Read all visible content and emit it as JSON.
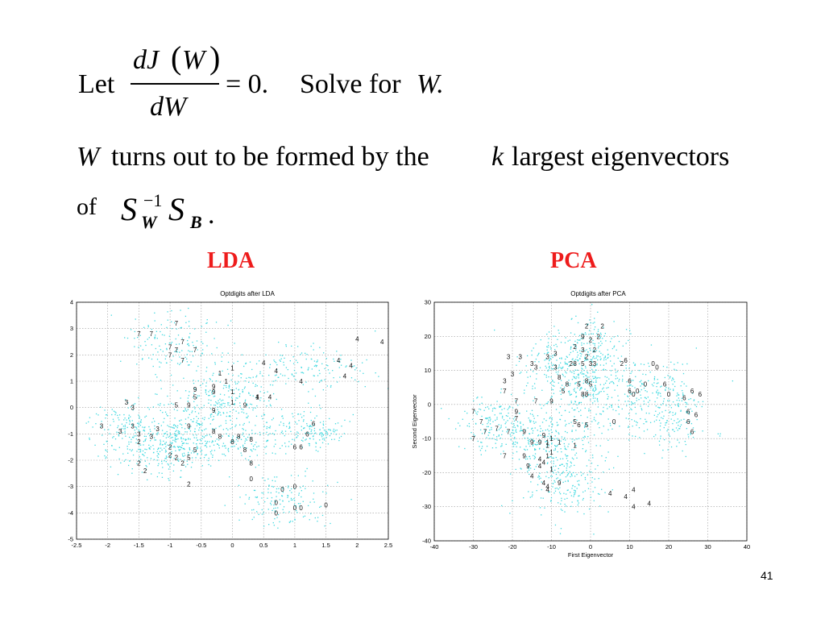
{
  "slide": {
    "let_word": "Let",
    "numerator": "dJ",
    "paren_open": "(",
    "numerator_var": "W",
    "paren_close": ")",
    "denominator": "dW",
    "equals": "= 0.",
    "solve_text": "Solve for",
    "solve_var": "W.",
    "line2_var": "W",
    "line2_mid": "turns out to be formed by the",
    "line2_k": "k",
    "line2_end": "largest eigenvectors",
    "line3_of": "of",
    "s1": "S",
    "s1_sub": "W",
    "s1_sup": "−1",
    "s2": "S",
    "s2_sub": "B",
    "period": ".",
    "label_lda": "LDA",
    "label_pca": "PCA",
    "page_number": "41"
  },
  "colors": {
    "accent_red": "#ee1c1c",
    "scatter_cyan": "#3fd9e0"
  },
  "chart_data": [
    {
      "type": "scatter",
      "title": "Optdigits after LDA",
      "xlabel": "",
      "ylabel": "",
      "xlim": [
        -2.5,
        2.5
      ],
      "ylim": [
        -5,
        4
      ],
      "xticks": [
        "-2.5",
        "-2",
        "-1.5",
        "-1",
        "-0.5",
        "0",
        "0.5",
        "1",
        "1.5",
        "2",
        "2.5"
      ],
      "yticks": [
        "-5",
        "-4",
        "-3",
        "-2",
        "-1",
        "0",
        "1",
        "2",
        "3",
        "4"
      ],
      "grid": true,
      "clusters": [
        {
          "label": "7",
          "cx": -0.9,
          "cy": 2.4,
          "sx": 0.45,
          "sy": 0.55
        },
        {
          "label": "4",
          "cx": 1.2,
          "cy": 1.5,
          "sx": 0.6,
          "sy": 0.5
        },
        {
          "label": "1",
          "cx": -0.1,
          "cy": 0.6,
          "sx": 0.4,
          "sy": 0.5
        },
        {
          "label": "3",
          "cx": -1.7,
          "cy": -0.8,
          "sx": 0.3,
          "sy": 0.5
        },
        {
          "label": "2",
          "cx": -1.1,
          "cy": -1.7,
          "sx": 0.45,
          "sy": 0.4
        },
        {
          "label": "8",
          "cx": 0.1,
          "cy": -1.2,
          "sx": 0.45,
          "sy": 0.45
        },
        {
          "label": "6",
          "cx": 1.2,
          "cy": -0.9,
          "sx": 0.3,
          "sy": 0.4
        },
        {
          "label": "0",
          "cx": 0.8,
          "cy": -3.5,
          "sx": 0.35,
          "sy": 0.5
        },
        {
          "label": "9",
          "cx": -0.4,
          "cy": -0.2,
          "sx": 0.5,
          "sy": 0.5
        },
        {
          "label": "5",
          "cx": -0.8,
          "cy": -1.3,
          "sx": 0.4,
          "sy": 0.5
        }
      ],
      "labels": [
        {
          "t": "7",
          "x": -0.9,
          "y": 3.2
        },
        {
          "t": "7",
          "x": -1.5,
          "y": 2.8
        },
        {
          "t": "7",
          "x": -1.3,
          "y": 2.8
        },
        {
          "t": "7",
          "x": -0.8,
          "y": 2.5
        },
        {
          "t": "7",
          "x": -1.0,
          "y": 2.3
        },
        {
          "t": "7",
          "x": -0.9,
          "y": 2.2
        },
        {
          "t": "7",
          "x": -0.6,
          "y": 2.2
        },
        {
          "t": "7",
          "x": -1.0,
          "y": 2.0
        },
        {
          "t": "7",
          "x": -0.8,
          "y": 1.8
        },
        {
          "t": "4",
          "x": 2.0,
          "y": 2.6
        },
        {
          "t": "4",
          "x": 2.4,
          "y": 2.5
        },
        {
          "t": "4",
          "x": 1.7,
          "y": 1.8
        },
        {
          "t": "4",
          "x": 1.9,
          "y": 1.6
        },
        {
          "t": "4",
          "x": 1.8,
          "y": 1.2
        },
        {
          "t": "4",
          "x": 0.5,
          "y": 1.7
        },
        {
          "t": "4",
          "x": 0.7,
          "y": 1.4
        },
        {
          "t": "4",
          "x": 1.1,
          "y": 1.0
        },
        {
          "t": "4",
          "x": 0.6,
          "y": 0.4
        },
        {
          "t": "4",
          "x": 0.4,
          "y": 0.4
        },
        {
          "t": "1",
          "x": 0.0,
          "y": 1.5
        },
        {
          "t": "1",
          "x": -0.2,
          "y": 1.3
        },
        {
          "t": "1",
          "x": -0.1,
          "y": 1.0
        },
        {
          "t": "1",
          "x": 0.0,
          "y": 0.6
        },
        {
          "t": "1",
          "x": 0.4,
          "y": 0.4
        },
        {
          "t": "1",
          "x": 0.0,
          "y": 0.2
        },
        {
          "t": "9",
          "x": -0.6,
          "y": 0.7
        },
        {
          "t": "9",
          "x": -0.3,
          "y": 0.8
        },
        {
          "t": "9",
          "x": -0.3,
          "y": 0.6
        },
        {
          "t": "9",
          "x": -0.7,
          "y": 0.1
        },
        {
          "t": "9",
          "x": -0.3,
          "y": -0.1
        },
        {
          "t": "9",
          "x": 0.2,
          "y": 0.1
        },
        {
          "t": "9",
          "x": -0.7,
          "y": -0.7
        },
        {
          "t": "5",
          "x": -0.6,
          "y": 0.4
        },
        {
          "t": "5",
          "x": -0.9,
          "y": 0.1
        },
        {
          "t": "5",
          "x": -0.6,
          "y": -1.6
        },
        {
          "t": "5",
          "x": -0.7,
          "y": -1.9
        },
        {
          "t": "3",
          "x": -2.1,
          "y": -0.7
        },
        {
          "t": "3",
          "x": -1.7,
          "y": 0.2
        },
        {
          "t": "3",
          "x": -1.6,
          "y": 0.0
        },
        {
          "t": "3",
          "x": -1.6,
          "y": -0.7
        },
        {
          "t": "3",
          "x": -1.5,
          "y": -1.0
        },
        {
          "t": "3",
          "x": -1.2,
          "y": -0.8
        },
        {
          "t": "3",
          "x": -1.3,
          "y": -1.1
        },
        {
          "t": "3",
          "x": -1.8,
          "y": -0.9
        },
        {
          "t": "2",
          "x": -1.5,
          "y": -1.3
        },
        {
          "t": "2",
          "x": -1.0,
          "y": -1.5
        },
        {
          "t": "2",
          "x": -1.0,
          "y": -1.8
        },
        {
          "t": "2",
          "x": -0.8,
          "y": -2.1
        },
        {
          "t": "2",
          "x": -1.5,
          "y": -2.1
        },
        {
          "t": "2",
          "x": -1.4,
          "y": -2.4
        },
        {
          "t": "2",
          "x": -0.7,
          "y": -2.9
        },
        {
          "t": "2",
          "x": -0.9,
          "y": -1.9
        },
        {
          "t": "8",
          "x": -0.3,
          "y": -0.9
        },
        {
          "t": "8",
          "x": -0.2,
          "y": -1.1
        },
        {
          "t": "8",
          "x": 0.0,
          "y": -1.3
        },
        {
          "t": "8",
          "x": 0.1,
          "y": -1.1
        },
        {
          "t": "8",
          "x": 0.3,
          "y": -1.2
        },
        {
          "t": "8",
          "x": 0.2,
          "y": -1.6
        },
        {
          "t": "8",
          "x": 0.3,
          "y": -2.1
        },
        {
          "t": "6",
          "x": 1.3,
          "y": -0.6
        },
        {
          "t": "6",
          "x": 1.2,
          "y": -1.0
        },
        {
          "t": "6",
          "x": 1.0,
          "y": -1.5
        },
        {
          "t": "6",
          "x": 1.1,
          "y": -1.5
        },
        {
          "t": "0",
          "x": 0.3,
          "y": -2.7
        },
        {
          "t": "0",
          "x": 0.8,
          "y": -3.1
        },
        {
          "t": "0",
          "x": 1.0,
          "y": -3.0
        },
        {
          "t": "0",
          "x": 0.7,
          "y": -3.6
        },
        {
          "t": "0",
          "x": 1.0,
          "y": -3.8
        },
        {
          "t": "0",
          "x": 1.1,
          "y": -3.8
        },
        {
          "t": "0",
          "x": 0.7,
          "y": -4.0
        },
        {
          "t": "0",
          "x": 1.5,
          "y": -3.7
        }
      ]
    },
    {
      "type": "scatter",
      "title": "Optdigits after PCA",
      "xlabel": "First Eigenvector",
      "ylabel": "Second Eigenvector",
      "xlim": [
        -40,
        40
      ],
      "ylim": [
        -40,
        30
      ],
      "xticks": [
        "-40",
        "-30",
        "-20",
        "-10",
        "0",
        "10",
        "20",
        "30",
        "40"
      ],
      "yticks": [
        "-40",
        "-30",
        "-20",
        "-10",
        "0",
        "10",
        "20",
        "30"
      ],
      "grid": true,
      "clusters": [
        {
          "label": "2",
          "cx": 0,
          "cy": 18,
          "sx": 4,
          "sy": 4
        },
        {
          "label": "3",
          "cx": -9,
          "cy": 12,
          "sx": 5,
          "sy": 4
        },
        {
          "label": "8",
          "cx": -1,
          "cy": 7,
          "sx": 5,
          "sy": 5
        },
        {
          "label": "0",
          "cx": 15,
          "cy": 4,
          "sx": 5,
          "sy": 5
        },
        {
          "label": "6",
          "cx": 21,
          "cy": -3,
          "sx": 4,
          "sy": 5
        },
        {
          "label": "7",
          "cx": -25,
          "cy": -6,
          "sx": 4,
          "sy": 4
        },
        {
          "label": "9",
          "cx": -14,
          "cy": -9,
          "sx": 5,
          "sy": 5
        },
        {
          "label": "1",
          "cx": -10,
          "cy": -14,
          "sx": 5,
          "sy": 5
        },
        {
          "label": "4",
          "cx": -6,
          "cy": -24,
          "sx": 5,
          "sy": 5
        },
        {
          "label": "5",
          "cx": 0,
          "cy": 0,
          "sx": 6,
          "sy": 6
        }
      ],
      "labels": [
        {
          "t": "2",
          "x": -1,
          "y": 23
        },
        {
          "t": "2",
          "x": 3,
          "y": 23
        },
        {
          "t": "9",
          "x": -2,
          "y": 20
        },
        {
          "t": "2",
          "x": 0,
          "y": 19
        },
        {
          "t": "2",
          "x": 2,
          "y": 20
        },
        {
          "t": "2",
          "x": -4,
          "y": 17
        },
        {
          "t": "3",
          "x": -2,
          "y": 16
        },
        {
          "t": "2",
          "x": 1,
          "y": 16
        },
        {
          "t": "2",
          "x": -1,
          "y": 14
        },
        {
          "t": "3",
          "x": -21,
          "y": 14
        },
        {
          "t": "3",
          "x": -18,
          "y": 14
        },
        {
          "t": "3",
          "x": -15,
          "y": 12
        },
        {
          "t": "3",
          "x": -11,
          "y": 14
        },
        {
          "t": "3",
          "x": -9,
          "y": 15
        },
        {
          "t": "3",
          "x": -22,
          "y": 7
        },
        {
          "t": "3",
          "x": -20,
          "y": 9
        },
        {
          "t": "3",
          "x": -14,
          "y": 11
        },
        {
          "t": "3",
          "x": -9,
          "y": 11
        },
        {
          "t": "3",
          "x": 0,
          "y": 12
        },
        {
          "t": "2",
          "x": -5,
          "y": 12
        },
        {
          "t": "8",
          "x": -4,
          "y": 12
        },
        {
          "t": "5",
          "x": -2,
          "y": 12
        },
        {
          "t": "3",
          "x": 1,
          "y": 12
        },
        {
          "t": "8",
          "x": -8,
          "y": 8
        },
        {
          "t": "8",
          "x": -1,
          "y": 7
        },
        {
          "t": "8",
          "x": -6,
          "y": 6
        },
        {
          "t": "5",
          "x": -3,
          "y": 6
        },
        {
          "t": "5",
          "x": 0,
          "y": 6
        },
        {
          "t": "8",
          "x": -2,
          "y": 3
        },
        {
          "t": "8",
          "x": -1,
          "y": 3
        },
        {
          "t": "5",
          "x": -7,
          "y": 4
        },
        {
          "t": "6",
          "x": 9,
          "y": 13
        },
        {
          "t": "2",
          "x": 8,
          "y": 12
        },
        {
          "t": "0",
          "x": 16,
          "y": 12
        },
        {
          "t": "0",
          "x": 17,
          "y": 11
        },
        {
          "t": "6",
          "x": 10,
          "y": 7
        },
        {
          "t": "0",
          "x": 14,
          "y": 6
        },
        {
          "t": "6",
          "x": 10,
          "y": 4
        },
        {
          "t": "0",
          "x": 12,
          "y": 4
        },
        {
          "t": "0",
          "x": 11,
          "y": 3
        },
        {
          "t": "0",
          "x": 20,
          "y": 3
        },
        {
          "t": "6",
          "x": 19,
          "y": 6
        },
        {
          "t": "6",
          "x": 26,
          "y": 4
        },
        {
          "t": "6",
          "x": 24,
          "y": 2
        },
        {
          "t": "6",
          "x": 28,
          "y": 3
        },
        {
          "t": "6",
          "x": 25,
          "y": -2
        },
        {
          "t": "6",
          "x": 27,
          "y": -3
        },
        {
          "t": "6",
          "x": 26,
          "y": -8
        },
        {
          "t": "6",
          "x": 25,
          "y": -5
        },
        {
          "t": "0",
          "x": 6,
          "y": -5
        },
        {
          "t": "7",
          "x": -22,
          "y": 4
        },
        {
          "t": "7",
          "x": -19,
          "y": 1
        },
        {
          "t": "7",
          "x": -14,
          "y": 1
        },
        {
          "t": "7",
          "x": -30,
          "y": -2
        },
        {
          "t": "7",
          "x": -28,
          "y": -5
        },
        {
          "t": "7",
          "x": -24,
          "y": -7
        },
        {
          "t": "7",
          "x": -27,
          "y": -8
        },
        {
          "t": "7",
          "x": -21,
          "y": -8
        },
        {
          "t": "7",
          "x": -19,
          "y": -4
        },
        {
          "t": "7",
          "x": -30,
          "y": -10
        },
        {
          "t": "7",
          "x": -22,
          "y": -15
        },
        {
          "t": "9",
          "x": -10,
          "y": 1
        },
        {
          "t": "9",
          "x": -19,
          "y": -2
        },
        {
          "t": "9",
          "x": -17,
          "y": -8
        },
        {
          "t": "9",
          "x": -12,
          "y": -9
        },
        {
          "t": "9",
          "x": -15,
          "y": -11
        },
        {
          "t": "9",
          "x": -13,
          "y": -11
        },
        {
          "t": "9",
          "x": -17,
          "y": -15
        },
        {
          "t": "9",
          "x": -16,
          "y": -18
        },
        {
          "t": "1",
          "x": -11,
          "y": -11
        },
        {
          "t": "1",
          "x": -10,
          "y": -10
        },
        {
          "t": "1",
          "x": -8,
          "y": -11
        },
        {
          "t": "1",
          "x": -11,
          "y": -12
        },
        {
          "t": "1",
          "x": -10,
          "y": -14
        },
        {
          "t": "1",
          "x": -4,
          "y": -12
        },
        {
          "t": "1",
          "x": -11,
          "y": -15
        },
        {
          "t": "1",
          "x": -10,
          "y": -19
        },
        {
          "t": "5",
          "x": -4,
          "y": -5
        },
        {
          "t": "6",
          "x": -3,
          "y": -6
        },
        {
          "t": "5",
          "x": -1,
          "y": -6
        },
        {
          "t": "4",
          "x": -13,
          "y": -16
        },
        {
          "t": "4",
          "x": -13,
          "y": -18
        },
        {
          "t": "4",
          "x": -12,
          "y": -17
        },
        {
          "t": "4",
          "x": -15,
          "y": -21
        },
        {
          "t": "4",
          "x": -12,
          "y": -23
        },
        {
          "t": "4",
          "x": -11,
          "y": -24
        },
        {
          "t": "9",
          "x": -8,
          "y": -23
        },
        {
          "t": "4",
          "x": -11,
          "y": -25
        },
        {
          "t": "4",
          "x": 5,
          "y": -26
        },
        {
          "t": "4",
          "x": 9,
          "y": -27
        },
        {
          "t": "4",
          "x": 11,
          "y": -25
        },
        {
          "t": "4",
          "x": 11,
          "y": -30
        },
        {
          "t": "4",
          "x": 15,
          "y": -29
        }
      ]
    }
  ]
}
